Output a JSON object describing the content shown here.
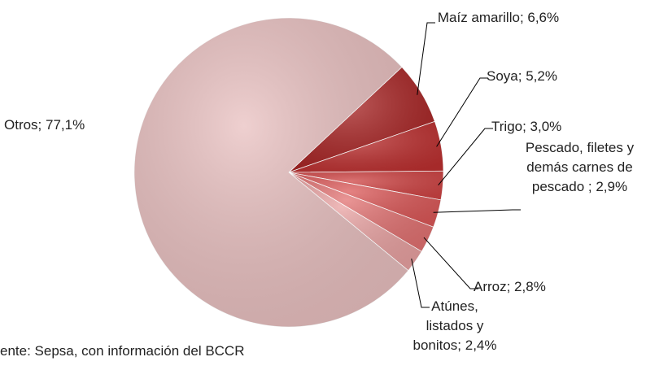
{
  "chart_data": {
    "type": "pie",
    "values": [
      6.6,
      5.2,
      3.0,
      2.9,
      2.8,
      2.4,
      77.1
    ],
    "value_labels": [
      "Maíz amarillo; 6,6%",
      "Soya; 5,2%",
      "Trigo; 3,0%",
      "Pescado, filetes y demás carnes de pescado ; 2,9%",
      "Arroz; 2,8%",
      "Atúnes, listados y bonitos; 2,4%",
      "Otros; 77,1%"
    ],
    "colors": [
      "#a82424",
      "#bd3030",
      "#cf4444",
      "#db5858",
      "#e27272",
      "#e9a2a2",
      "#e9c0c0"
    ],
    "source": "ente: Sepsa, con información del BCCR"
  }
}
